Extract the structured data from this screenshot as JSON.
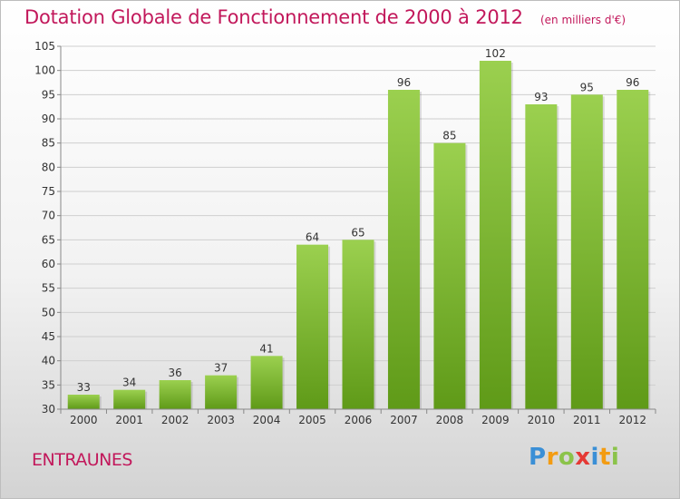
{
  "header": {
    "title": "Dotation Globale de Fonctionnement de 2000 à 2012",
    "subtitle": "(en milliers d'€)"
  },
  "footer": {
    "place": "ENTRAUNES",
    "logo": "Proxiti"
  },
  "colors": {
    "title": "#c2185b",
    "bar_light": "#9bd04f",
    "bar_dark": "#5f9a18",
    "grid": "#cfcfcf"
  },
  "chart_data": {
    "type": "bar",
    "title": "Dotation Globale de Fonctionnement de 2000 à 2012",
    "subtitle": "(en milliers d'€)",
    "xlabel": "",
    "ylabel": "",
    "categories": [
      "2000",
      "2001",
      "2002",
      "2003",
      "2004",
      "2005",
      "2006",
      "2007",
      "2008",
      "2009",
      "2010",
      "2011",
      "2012"
    ],
    "values": [
      33,
      34,
      36,
      37,
      41,
      64,
      65,
      96,
      85,
      102,
      93,
      95,
      96
    ],
    "ylim": [
      30,
      105
    ],
    "yticks": [
      30,
      35,
      40,
      45,
      50,
      55,
      60,
      65,
      70,
      75,
      80,
      85,
      90,
      95,
      100,
      105
    ],
    "grid": true,
    "data_labels": true
  }
}
